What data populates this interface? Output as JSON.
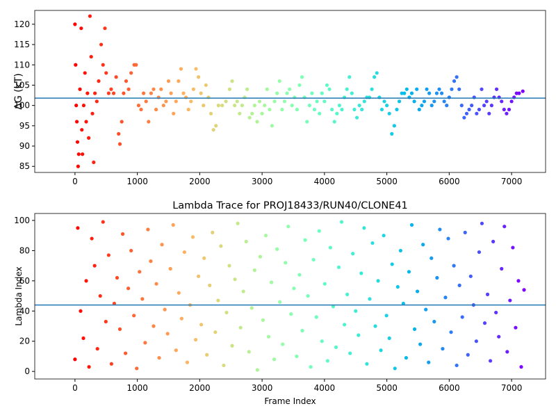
{
  "chart_data": [
    {
      "type": "scatter",
      "ylabel": "ΔG (kT)",
      "colormap": "rainbow_r",
      "hline": 101.8,
      "hline_color": "#1f77b4",
      "xlim": [
        -645,
        7545
      ],
      "ylim": [
        83.5,
        123.4
      ],
      "xticks": [
        0,
        1000,
        2000,
        3000,
        4000,
        5000,
        6000,
        7000
      ],
      "yticks": [
        85,
        90,
        95,
        100,
        105,
        110,
        115,
        120
      ],
      "x": [
        0,
        10,
        20,
        30,
        40,
        50,
        60,
        80,
        100,
        110,
        120,
        140,
        160,
        180,
        200,
        220,
        240,
        260,
        280,
        300,
        320,
        350,
        380,
        420,
        450,
        480,
        500,
        540,
        580,
        620,
        660,
        700,
        720,
        750,
        780,
        820,
        860,
        900,
        950,
        980,
        1020,
        1060,
        1100,
        1140,
        1180,
        1220,
        1260,
        1300,
        1340,
        1380,
        1420,
        1460,
        1500,
        1540,
        1580,
        1620,
        1660,
        1700,
        1740,
        1780,
        1820,
        1860,
        1900,
        1940,
        1980,
        2020,
        2060,
        2100,
        2140,
        2180,
        2220,
        2260,
        2300,
        2360,
        2420,
        2480,
        2520,
        2560,
        2600,
        2640,
        2680,
        2720,
        2760,
        2800,
        2840,
        2880,
        2920,
        2960,
        3000,
        3040,
        3080,
        3120,
        3160,
        3200,
        3240,
        3280,
        3320,
        3360,
        3400,
        3440,
        3480,
        3520,
        3560,
        3600,
        3640,
        3680,
        3720,
        3760,
        3800,
        3840,
        3880,
        3920,
        3960,
        4000,
        4040,
        4080,
        4120,
        4160,
        4200,
        4240,
        4280,
        4320,
        4360,
        4400,
        4440,
        4480,
        4520,
        4560,
        4600,
        4640,
        4680,
        4720,
        4760,
        4800,
        4840,
        4880,
        4920,
        4960,
        5000,
        5040,
        5080,
        5120,
        5160,
        5200,
        5240,
        5280,
        5320,
        5360,
        5400,
        5440,
        5480,
        5520,
        5560,
        5600,
        5640,
        5680,
        5720,
        5760,
        5800,
        5840,
        5880,
        5920,
        5960,
        6000,
        6040,
        6080,
        6120,
        6160,
        6200,
        6240,
        6280,
        6320,
        6360,
        6400,
        6440,
        6480,
        6520,
        6560,
        6600,
        6640,
        6680,
        6720,
        6760,
        6800,
        6840,
        6880,
        6920,
        6960,
        7000,
        7040,
        7080,
        7120,
        7180
      ],
      "values": [
        120,
        110,
        100,
        96,
        91,
        85,
        88,
        104,
        119,
        94,
        88,
        100,
        108,
        96,
        103,
        92,
        122,
        112,
        98,
        86,
        103,
        101,
        106,
        115,
        110,
        119,
        108,
        103,
        104,
        103,
        107,
        93,
        90.5,
        96,
        103,
        106,
        104,
        108,
        110,
        110,
        100,
        99,
        103,
        101,
        96,
        103,
        104,
        99,
        102,
        104,
        100,
        101,
        106,
        103,
        98,
        101,
        106,
        109,
        103,
        102,
        99,
        101,
        104,
        109,
        107,
        103,
        100,
        105,
        102,
        98,
        94,
        95,
        100,
        100,
        101,
        104,
        106,
        100,
        101,
        98,
        100,
        102,
        104,
        97,
        98,
        100,
        96,
        101,
        98,
        100,
        104,
        99,
        95,
        101,
        103,
        106,
        99,
        101,
        103,
        104,
        100,
        102,
        99,
        105,
        107,
        102,
        96,
        100,
        103,
        99,
        101,
        98,
        103,
        101,
        105,
        104,
        99,
        96,
        98,
        100,
        99,
        102,
        104,
        107,
        103,
        99,
        97,
        100,
        99,
        101,
        102,
        102,
        104,
        107,
        108,
        102,
        99,
        101,
        100,
        98,
        93,
        95,
        99,
        101,
        103,
        103,
        104,
        102,
        103,
        101,
        104,
        99,
        100,
        101,
        104,
        103,
        100,
        101,
        103,
        104,
        103,
        101,
        100,
        102,
        104,
        106,
        107,
        104,
        100,
        97,
        98,
        99,
        100,
        102,
        98,
        99,
        104,
        100,
        101,
        98,
        100,
        102,
        104,
        102,
        101,
        99,
        98,
        99,
        101,
        102,
        103,
        103,
        103.5
      ]
    },
    {
      "type": "scatter",
      "title": "Lambda Trace for PROJ18433/RUN40/CLONE41",
      "xlabel": "Frame Index",
      "ylabel": "Lambda Index",
      "colormap": "rainbow_r",
      "hline": 44,
      "hline_color": "#1f77b4",
      "xlim": [
        -645,
        7545
      ],
      "ylim": [
        -5,
        104.6
      ],
      "xticks": [
        0,
        1000,
        2000,
        3000,
        4000,
        5000,
        6000,
        7000
      ],
      "yticks": [
        0,
        20,
        40,
        60,
        80,
        100
      ],
      "x": [
        0,
        45,
        90,
        135,
        180,
        225,
        270,
        315,
        360,
        405,
        450,
        495,
        540,
        585,
        630,
        675,
        720,
        765,
        810,
        855,
        900,
        945,
        990,
        1035,
        1080,
        1125,
        1170,
        1215,
        1260,
        1305,
        1350,
        1395,
        1440,
        1485,
        1530,
        1575,
        1620,
        1665,
        1710,
        1755,
        1800,
        1845,
        1890,
        1935,
        1980,
        2025,
        2070,
        2115,
        2160,
        2205,
        2250,
        2295,
        2340,
        2385,
        2430,
        2475,
        2520,
        2565,
        2610,
        2655,
        2700,
        2745,
        2790,
        2835,
        2880,
        2925,
        2970,
        3015,
        3060,
        3105,
        3150,
        3195,
        3240,
        3285,
        3330,
        3375,
        3420,
        3465,
        3510,
        3555,
        3600,
        3645,
        3690,
        3735,
        3780,
        3825,
        3870,
        3915,
        3960,
        4005,
        4050,
        4095,
        4140,
        4185,
        4230,
        4275,
        4320,
        4365,
        4410,
        4455,
        4500,
        4545,
        4590,
        4635,
        4680,
        4725,
        4770,
        4815,
        4860,
        4905,
        4950,
        4995,
        5040,
        5085,
        5130,
        5175,
        5220,
        5265,
        5310,
        5355,
        5400,
        5445,
        5490,
        5535,
        5580,
        5625,
        5670,
        5715,
        5760,
        5805,
        5850,
        5895,
        5940,
        5985,
        6030,
        6075,
        6120,
        6165,
        6210,
        6255,
        6300,
        6345,
        6390,
        6435,
        6480,
        6525,
        6570,
        6615,
        6660,
        6705,
        6750,
        6795,
        6840,
        6885,
        6930,
        6975,
        7020,
        7065,
        7110,
        7155,
        7200
      ],
      "values": [
        8,
        95,
        40,
        22,
        60,
        3,
        88,
        70,
        15,
        50,
        99,
        33,
        77,
        5,
        45,
        62,
        28,
        91,
        12,
        55,
        80,
        37,
        2,
        66,
        48,
        19,
        94,
        73,
        30,
        58,
        9,
        84,
        41,
        25,
        68,
        97,
        14,
        52,
        35,
        79,
        6,
        44,
        89,
        21,
        63,
        31,
        75,
        11,
        57,
        92,
        26,
        47,
        83,
        4,
        39,
        70,
        17,
        61,
        98,
        29,
        53,
        86,
        13,
        42,
        67,
        1,
        76,
        34,
        90,
        23,
        59,
        8,
        81,
        46,
        18,
        72,
        96,
        38,
        55,
        10,
        64,
        27,
        87,
        50,
        3,
        74,
        36,
        93,
        20,
        58,
        7,
        82,
        43,
        16,
        69,
        99,
        31,
        51,
        12,
        78,
        40,
        24,
        65,
        95,
        5,
        48,
        85,
        30,
        60,
        14,
        90,
        37,
        22,
        71,
        2,
        56,
        80,
        45,
        9,
        66,
        97,
        28,
        53,
        18,
        84,
        41,
        6,
        75,
        33,
        62,
        94,
        15,
        49,
        88,
        26,
        70,
        4,
        57,
        36,
        92,
        11,
        63,
        44,
        20,
        79,
        98,
        32,
        51,
        7,
        86,
        39,
        23,
        68,
        96,
        13,
        47,
        82,
        29,
        60,
        3,
        54
      ]
    }
  ]
}
